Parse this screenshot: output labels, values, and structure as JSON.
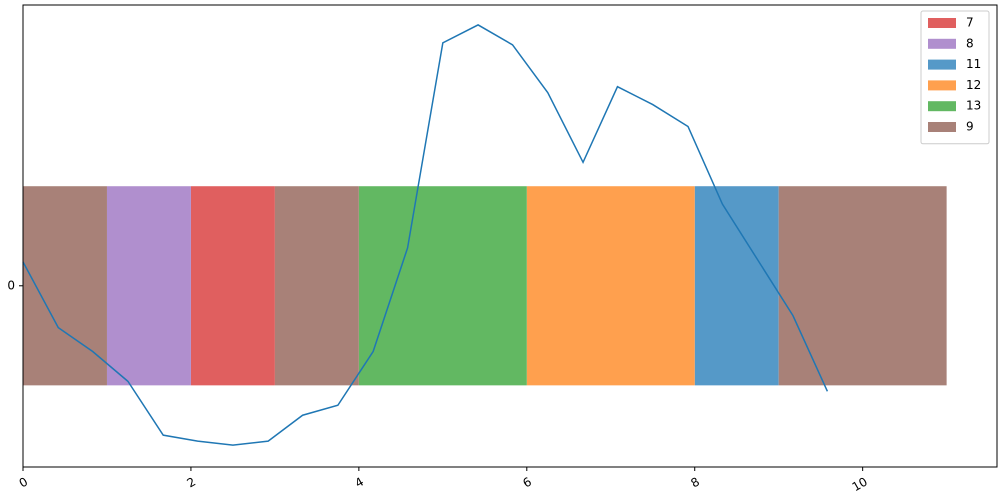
{
  "chart_data": {
    "type": "broken-bar",
    "xlim": [
      0,
      11.6
    ],
    "xticks": [
      0,
      2,
      4,
      6,
      8,
      10
    ],
    "ylim": [
      -0.91,
      1.41
    ],
    "yticks": [
      0
    ],
    "bar_range": [
      -0.5,
      0.5
    ],
    "legend": "upper right",
    "series": [
      {
        "name": "7",
        "color": "#e05f5f",
        "starts": [
          2
        ],
        "widths": [
          1
        ]
      },
      {
        "name": "8",
        "color": "#b08fce",
        "starts": [
          1
        ],
        "widths": [
          1
        ]
      },
      {
        "name": "11",
        "color": "#5599c8",
        "starts": [
          8
        ],
        "widths": [
          1
        ]
      },
      {
        "name": "12",
        "color": "#ffa04e",
        "starts": [
          6
        ],
        "widths": [
          2
        ]
      },
      {
        "name": "13",
        "color": "#62b862",
        "starts": [
          4
        ],
        "widths": [
          2
        ]
      },
      {
        "name": "9",
        "color": "#a88178",
        "starts": [
          0,
          3,
          9
        ],
        "widths": [
          1,
          1,
          2
        ]
      }
    ],
    "line": {
      "color": "#1f77b4",
      "x": [
        0,
        0.42,
        0.83,
        1.25,
        1.67,
        2.08,
        2.5,
        2.92,
        3.33,
        3.75,
        4.17,
        4.58,
        5,
        5.42,
        5.83,
        6.25,
        6.67,
        7.08,
        7.5,
        7.92,
        8.33,
        8.75,
        9.17,
        9.58
      ],
      "values": [
        0.12,
        -0.21,
        -0.33,
        -0.48,
        -0.75,
        -0.78,
        -0.8,
        -0.78,
        -0.65,
        -0.6,
        -0.33,
        0.19,
        1.22,
        1.31,
        1.21,
        0.97,
        0.62,
        1.0,
        0.91,
        0.8,
        0.41,
        0.13,
        -0.15,
        -0.53
      ]
    }
  }
}
